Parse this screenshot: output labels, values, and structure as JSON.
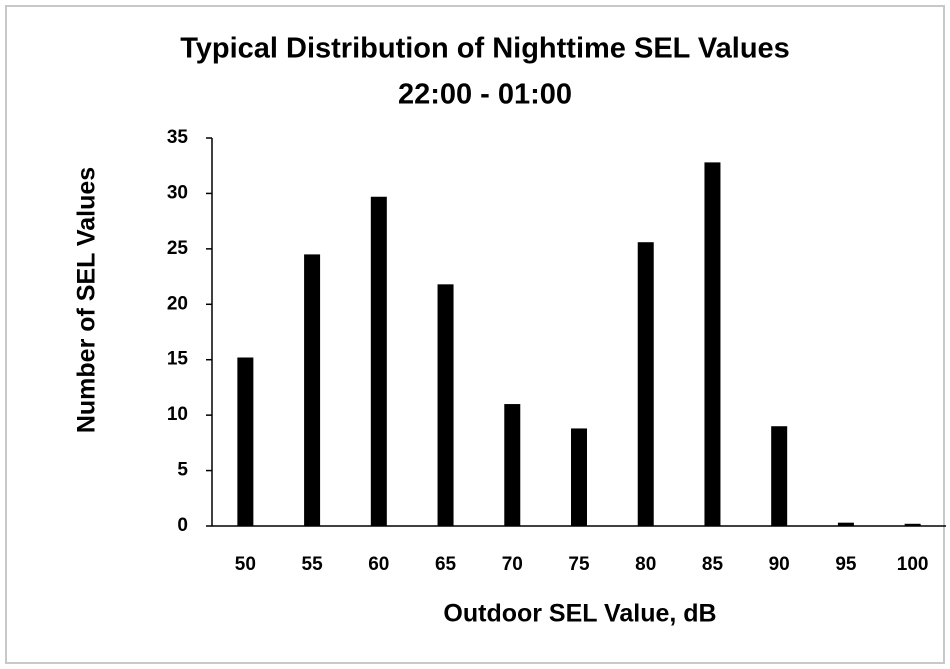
{
  "chart_data": {
    "type": "bar",
    "title": "Typical Distribution of Nighttime SEL Values",
    "subtitle": "22:00 - 01:00",
    "x_label": "Outdoor SEL Value, dB",
    "y_label": "Number of SEL Values",
    "categories": [
      "50",
      "55",
      "60",
      "65",
      "70",
      "75",
      "80",
      "85",
      "90",
      "95",
      "100"
    ],
    "values": [
      15.2,
      24.5,
      29.7,
      21.8,
      11,
      8.8,
      25.6,
      32.8,
      9,
      0.3,
      0.2
    ],
    "color": "#000000",
    "ylim": [
      0,
      35
    ],
    "yticks": [
      0,
      5,
      10,
      15,
      20,
      25,
      30,
      35
    ],
    "grid": false
  }
}
